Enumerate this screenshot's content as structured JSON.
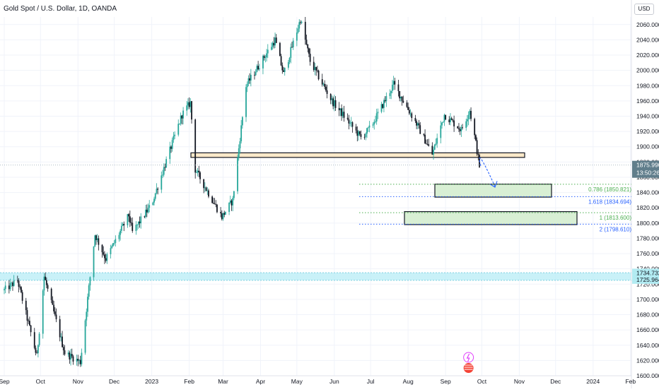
{
  "header": {
    "title": "Gold Spot / U.S. Dollar, 1D, OANDA",
    "currency": "USD"
  },
  "chart_data": {
    "type": "candlestick",
    "title": "Gold Spot / U.S. Dollar, 1D, OANDA",
    "ylim": [
      1600,
      2070
    ],
    "y_ticks": [
      "1600.000",
      "1620.000",
      "1640.000",
      "1660.000",
      "1680.000",
      "1700.000",
      "1720.000",
      "1740.000",
      "1760.000",
      "1780.000",
      "1800.000",
      "1820.000",
      "1840.000",
      "1860.000",
      "1880.000",
      "1900.000",
      "1920.000",
      "1940.000",
      "1960.000",
      "1980.000",
      "2000.000",
      "2020.000",
      "2040.000",
      "2060.000"
    ],
    "x_ticks": [
      "Sep",
      "Oct",
      "Nov",
      "Dec",
      "2023",
      "Feb",
      "Mar",
      "Apr",
      "May",
      "Jun",
      "Jul",
      "Aug",
      "Sep",
      "Oct",
      "Nov",
      "Dec",
      "2024",
      "Feb"
    ],
    "price_path": [
      [
        "2022-09-01",
        1712
      ],
      [
        "2022-09-12",
        1725
      ],
      [
        "2022-09-28",
        1625
      ],
      [
        "2022-10-04",
        1730
      ],
      [
        "2022-10-21",
        1630
      ],
      [
        "2022-11-03",
        1618
      ],
      [
        "2022-11-15",
        1785
      ],
      [
        "2022-11-24",
        1753
      ],
      [
        "2022-12-13",
        1810
      ],
      [
        "2022-12-16",
        1788
      ],
      [
        "2023-01-01",
        1825
      ],
      [
        "2023-01-26",
        1942
      ],
      [
        "2023-02-02",
        1958
      ],
      [
        "2023-02-06",
        1870
      ],
      [
        "2023-02-28",
        1808
      ],
      [
        "2023-03-09",
        1830
      ],
      [
        "2023-03-20",
        1980
      ],
      [
        "2023-04-13",
        2040
      ],
      [
        "2023-04-20",
        1995
      ],
      [
        "2023-05-04",
        2067
      ],
      [
        "2023-05-12",
        2012
      ],
      [
        "2023-05-30",
        1960
      ],
      [
        "2023-06-23",
        1912
      ],
      [
        "2023-07-01",
        1925
      ],
      [
        "2023-07-20",
        1982
      ],
      [
        "2023-08-08",
        1930
      ],
      [
        "2023-08-21",
        1890
      ],
      [
        "2023-08-31",
        1942
      ],
      [
        "2023-09-14",
        1922
      ],
      [
        "2023-09-21",
        1948
      ],
      [
        "2023-09-26",
        1905
      ],
      [
        "2023-09-29",
        1875
      ]
    ],
    "last_price": "1875.990",
    "countdown": "13:50:26",
    "zones": [
      {
        "name": "resistance-zone",
        "y": [
          1886,
          1892
        ],
        "color": "#fde9c9"
      },
      {
        "name": "target-zone-1",
        "y": [
          1834,
          1851
        ],
        "color": "#d8efd4"
      },
      {
        "name": "target-zone-2",
        "y": [
          1798,
          1815
        ],
        "color": "#d8efd4"
      },
      {
        "name": "support-band",
        "y": [
          1725,
          1735
        ],
        "color": "#b7ecf6"
      }
    ],
    "fib_levels": [
      {
        "label": "0.786 (1850.821)",
        "value": 1850.821,
        "color": "#4caf50"
      },
      {
        "label": "1.618 (1834.694)",
        "value": 1834.694,
        "color": "#2962ff"
      },
      {
        "label": "1 (1813.600)",
        "value": 1813.6,
        "color": "#4caf50"
      },
      {
        "label": "2 (1798.610)",
        "value": 1798.61,
        "color": "#2962ff"
      }
    ],
    "band_labels": [
      "1734.732",
      "1725.964"
    ],
    "colors": {
      "up": "#26a69a",
      "down": "#131722",
      "last_price": "#607d8b",
      "band": "#7ecfe0"
    }
  }
}
